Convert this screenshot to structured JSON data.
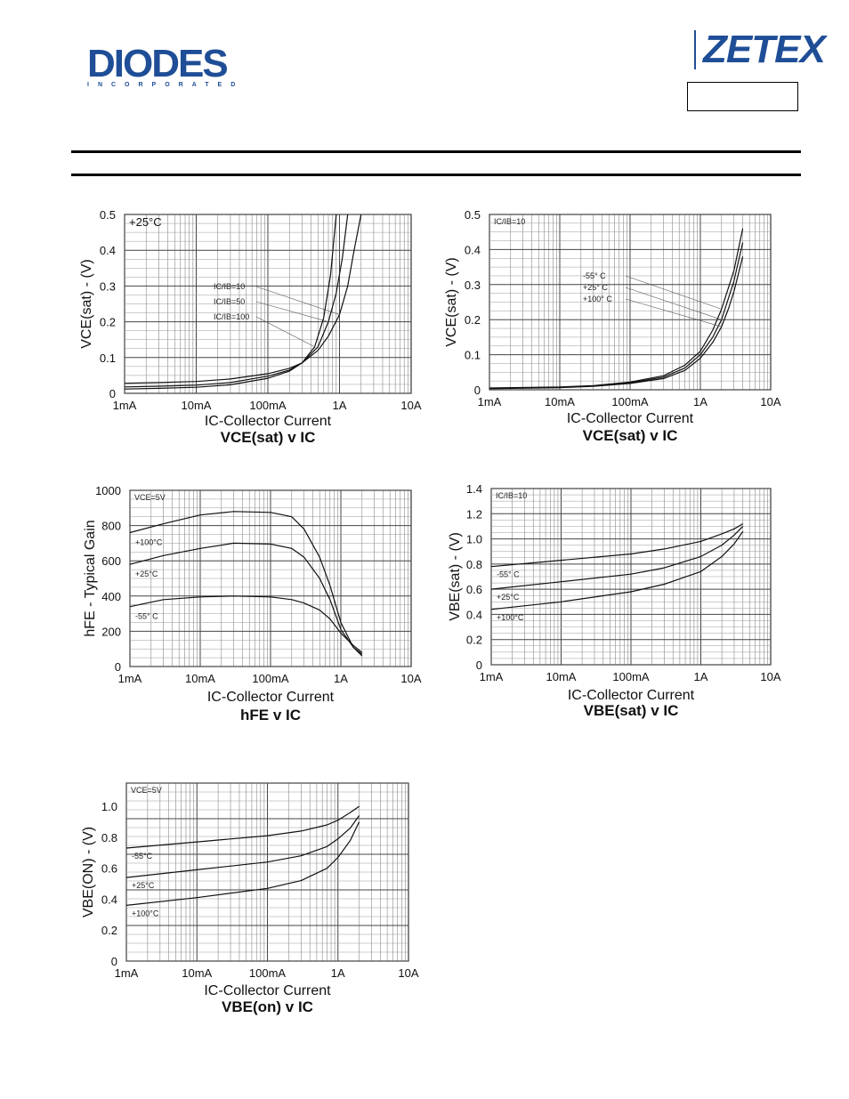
{
  "header": {
    "logo_left": "DIODES",
    "logo_left_sub": "INCORPORATED",
    "logo_right": "ZETEX",
    "part_box_text": ""
  },
  "colors": {
    "brand": "#1f4e97",
    "grid": "#555555",
    "curve": "#111111"
  },
  "chart_data": [
    {
      "type": "line",
      "title": "VCE(sat) v IC",
      "xlabel": "IC-Collector Current",
      "ylabel": "VCE(sat) - (V)",
      "x_scale": "log",
      "x_ticks": [
        "1mA",
        "10mA",
        "100mA",
        "1A",
        "10A"
      ],
      "y_ticks": [
        "0",
        "0.1",
        "0.2",
        "0.3",
        "0.4",
        "0.5"
      ],
      "ylim": [
        0,
        0.5
      ],
      "note": "+25°C",
      "series": [
        {
          "name": "IC/IB=10",
          "x": [
            0.001,
            0.003,
            0.01,
            0.03,
            0.1,
            0.2,
            0.3,
            0.5,
            0.7,
            1,
            1.3,
            1.6,
            2
          ],
          "y": [
            0.028,
            0.03,
            0.033,
            0.04,
            0.055,
            0.07,
            0.085,
            0.12,
            0.16,
            0.22,
            0.3,
            0.4,
            0.5
          ]
        },
        {
          "name": "IC/IB=50",
          "x": [
            0.001,
            0.003,
            0.01,
            0.03,
            0.1,
            0.2,
            0.3,
            0.5,
            0.7,
            0.9,
            1.1,
            1.3
          ],
          "y": [
            0.018,
            0.02,
            0.023,
            0.03,
            0.048,
            0.065,
            0.085,
            0.13,
            0.2,
            0.28,
            0.38,
            0.5
          ]
        },
        {
          "name": "IC/IB=100",
          "x": [
            0.001,
            0.003,
            0.01,
            0.03,
            0.1,
            0.2,
            0.3,
            0.45,
            0.6,
            0.75,
            0.9
          ],
          "y": [
            0.012,
            0.014,
            0.017,
            0.024,
            0.042,
            0.062,
            0.085,
            0.13,
            0.21,
            0.33,
            0.5
          ]
        }
      ]
    },
    {
      "type": "line",
      "title": "VCE(sat) v IC",
      "xlabel": "IC-Collector Current",
      "ylabel": "VCE(sat) - (V)",
      "x_scale": "log",
      "x_ticks": [
        "1mA",
        "10mA",
        "100mA",
        "1A",
        "10A"
      ],
      "y_ticks": [
        "0",
        "0.1",
        "0.2",
        "0.3",
        "0.4",
        "0.5"
      ],
      "ylim": [
        0,
        0.5
      ],
      "note": "IC/IB=10",
      "series": [
        {
          "name": "-55° C",
          "x": [
            0.001,
            0.01,
            0.03,
            0.1,
            0.3,
            0.6,
            1,
            1.5,
            2,
            2.5,
            3,
            4
          ],
          "y": [
            0.005,
            0.008,
            0.012,
            0.022,
            0.04,
            0.07,
            0.11,
            0.17,
            0.23,
            0.29,
            0.34,
            0.46
          ]
        },
        {
          "name": "+25° C",
          "x": [
            0.001,
            0.01,
            0.03,
            0.1,
            0.3,
            0.6,
            1,
            1.5,
            2,
            2.5,
            3,
            4
          ],
          "y": [
            0.004,
            0.007,
            0.011,
            0.02,
            0.036,
            0.062,
            0.1,
            0.15,
            0.2,
            0.26,
            0.31,
            0.42
          ]
        },
        {
          "name": "+100° C",
          "x": [
            0.001,
            0.01,
            0.03,
            0.1,
            0.3,
            0.6,
            1,
            1.5,
            2,
            2.5,
            3,
            4
          ],
          "y": [
            0.003,
            0.006,
            0.01,
            0.018,
            0.032,
            0.055,
            0.09,
            0.135,
            0.18,
            0.23,
            0.28,
            0.38
          ]
        }
      ]
    },
    {
      "type": "line",
      "title": "hFE v IC",
      "xlabel": "IC-Collector Current",
      "ylabel": "hFE - Typical Gain",
      "x_scale": "log",
      "x_ticks": [
        "1mA",
        "10mA",
        "100mA",
        "1A",
        "10A"
      ],
      "y_ticks": [
        "0",
        "200",
        "400",
        "600",
        "800",
        "1000"
      ],
      "ylim": [
        0,
        1000
      ],
      "note": "VCE=5V",
      "series": [
        {
          "name": "+100°C",
          "x": [
            0.001,
            0.003,
            0.01,
            0.03,
            0.1,
            0.2,
            0.3,
            0.5,
            0.7,
            1,
            1.5,
            2
          ],
          "y": [
            760,
            810,
            860,
            880,
            875,
            850,
            780,
            620,
            460,
            250,
            110,
            60
          ]
        },
        {
          "name": "+25°C",
          "x": [
            0.001,
            0.003,
            0.01,
            0.03,
            0.1,
            0.2,
            0.3,
            0.5,
            0.7,
            1,
            1.5,
            2
          ],
          "y": [
            580,
            630,
            670,
            700,
            695,
            670,
            620,
            500,
            380,
            210,
            110,
            70
          ]
        },
        {
          "name": "-55° C",
          "x": [
            0.001,
            0.003,
            0.01,
            0.03,
            0.1,
            0.2,
            0.3,
            0.5,
            0.7,
            1,
            1.5,
            2
          ],
          "y": [
            340,
            380,
            395,
            400,
            395,
            380,
            360,
            320,
            270,
            190,
            120,
            80
          ]
        }
      ]
    },
    {
      "type": "line",
      "title": "VBE(sat) v IC",
      "xlabel": "IC-Collector Current",
      "ylabel": "VBE(sat) - (V)",
      "x_scale": "log",
      "x_ticks": [
        "1mA",
        "10mA",
        "100mA",
        "1A",
        "10A"
      ],
      "y_ticks": [
        "0",
        "0.2",
        "0.4",
        "0.6",
        "0.8",
        "1.0",
        "1.2",
        "1.4"
      ],
      "ylim": [
        0,
        1.4
      ],
      "note": "IC/IB=10",
      "series": [
        {
          "name": "-55° C",
          "x": [
            0.001,
            0.01,
            0.1,
            0.3,
            1,
            2,
            3,
            4
          ],
          "y": [
            0.78,
            0.83,
            0.88,
            0.92,
            0.98,
            1.04,
            1.08,
            1.12
          ]
        },
        {
          "name": "+25°C",
          "x": [
            0.001,
            0.01,
            0.1,
            0.3,
            1,
            2,
            3,
            4
          ],
          "y": [
            0.6,
            0.66,
            0.72,
            0.77,
            0.86,
            0.95,
            1.03,
            1.1
          ]
        },
        {
          "name": "+100°C",
          "x": [
            0.001,
            0.01,
            0.1,
            0.3,
            1,
            2,
            3,
            4
          ],
          "y": [
            0.44,
            0.5,
            0.58,
            0.64,
            0.74,
            0.86,
            0.96,
            1.06
          ]
        }
      ]
    },
    {
      "type": "line",
      "title": "VBE(on) v IC",
      "xlabel": "IC-Collector Current",
      "ylabel": "VBE(ON) - (V)",
      "x_scale": "log",
      "x_ticks": [
        "1mA",
        "10mA",
        "100mA",
        "1A",
        "10A"
      ],
      "y_ticks": [
        "0",
        "0.2",
        "0.4",
        "0.6",
        "0.8",
        "1.0"
      ],
      "ylim": [
        0,
        1.15
      ],
      "note": "VCE=5V",
      "series": [
        {
          "name": "-55°C",
          "x": [
            0.001,
            0.01,
            0.1,
            0.3,
            0.7,
            1,
            1.5,
            2
          ],
          "y": [
            0.73,
            0.77,
            0.81,
            0.84,
            0.88,
            0.91,
            0.96,
            1.0
          ]
        },
        {
          "name": "+25°C",
          "x": [
            0.001,
            0.01,
            0.1,
            0.3,
            0.7,
            1,
            1.5,
            2
          ],
          "y": [
            0.54,
            0.59,
            0.64,
            0.68,
            0.74,
            0.79,
            0.86,
            0.94
          ]
        },
        {
          "name": "+100°C",
          "x": [
            0.001,
            0.01,
            0.1,
            0.3,
            0.7,
            1,
            1.5,
            2
          ],
          "y": [
            0.36,
            0.41,
            0.47,
            0.52,
            0.6,
            0.67,
            0.78,
            0.9
          ]
        }
      ]
    }
  ]
}
